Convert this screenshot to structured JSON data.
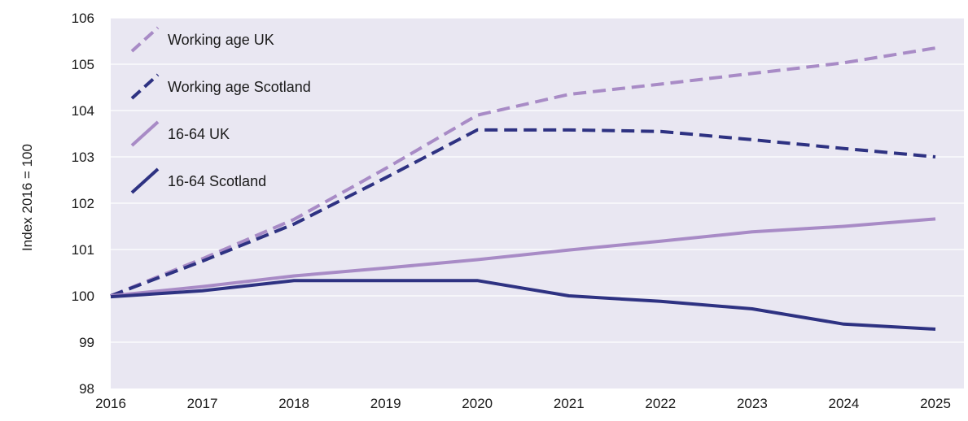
{
  "chart_data": {
    "type": "line",
    "title": "",
    "xlabel": "",
    "ylabel": "Index 2016 = 100",
    "x": [
      2016,
      2017,
      2018,
      2019,
      2020,
      2021,
      2022,
      2023,
      2024,
      2025
    ],
    "x_ticks": [
      "2016",
      "2017",
      "2018",
      "2019",
      "2020",
      "2021",
      "2022",
      "2023",
      "2024",
      "2025"
    ],
    "y_ticks": [
      "98",
      "99",
      "100",
      "101",
      "102",
      "103",
      "104",
      "105",
      "106"
    ],
    "xlim": [
      2016,
      2025
    ],
    "ylim": [
      98,
      106
    ],
    "grid": true,
    "legend_position": "top-left",
    "background_color": "#e9e7f2",
    "series": [
      {
        "name": "Working age UK",
        "color": "#a88bc6",
        "style": "dashed",
        "values": [
          100.0,
          100.8,
          101.65,
          102.75,
          103.9,
          104.35,
          104.57,
          104.8,
          105.03,
          105.35
        ]
      },
      {
        "name": "Working age Scotland",
        "color": "#2e3282",
        "style": "dashed",
        "values": [
          100.0,
          100.75,
          101.55,
          102.55,
          103.58,
          103.58,
          103.55,
          103.37,
          103.18,
          103.0
        ]
      },
      {
        "name": "16-64 UK",
        "color": "#a88bc6",
        "style": "solid",
        "values": [
          100.0,
          100.2,
          100.43,
          100.6,
          100.78,
          100.99,
          101.18,
          101.38,
          101.5,
          101.66
        ]
      },
      {
        "name": "16-64 Scotland",
        "color": "#2e3282",
        "style": "solid",
        "values": [
          99.98,
          100.11,
          100.33,
          100.33,
          100.33,
          100.0,
          99.88,
          99.72,
          99.39,
          99.28
        ]
      }
    ]
  }
}
